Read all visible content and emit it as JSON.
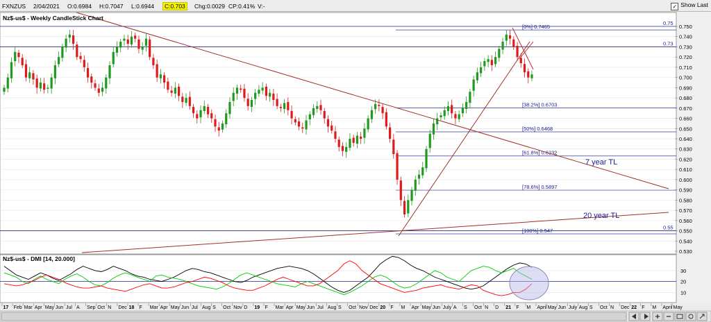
{
  "toolbar": {
    "symbol": "FXNZUS",
    "date": "2/04/2021",
    "open": "O:0.6984",
    "high": "H:0.7047",
    "low": "L:0.6944",
    "close": "C:0.703",
    "change": "Chg:0.0029",
    "change_pct": "CP:0.41%",
    "volume": "V:-",
    "show_last": "Show Last",
    "show_last_checked": true
  },
  "chart_data": [
    {
      "type": "candlestick",
      "title": "Nz$-us$ - Weekly CandleStick Chart",
      "ylim": [
        0.525,
        0.758
      ],
      "ytick_labels": [
        "0.750",
        "0.740",
        "0.730",
        "0.720",
        "0.710",
        "0.700",
        "0.690",
        "0.680",
        "0.670",
        "0.660",
        "0.650",
        "0.640",
        "0.630",
        "0.620",
        "0.610",
        "0.600",
        "0.590",
        "0.580",
        "0.570",
        "0.560",
        "0.550",
        "0.540",
        "0.530"
      ],
      "horizontal_levels": [
        {
          "label": "0.75",
          "value": 0.75
        },
        {
          "label": "0.73",
          "value": 0.73
        },
        {
          "label": "0.55",
          "value": 0.55
        }
      ],
      "fibonacci": [
        {
          "label": "[0%] 0.7465",
          "value": 0.7465
        },
        {
          "label": "[38.2%] 0.6703",
          "value": 0.6703
        },
        {
          "label": "[50%] 0.6468",
          "value": 0.6468
        },
        {
          "label": "[61.8%] 0.6232",
          "value": 0.6232
        },
        {
          "label": "[78.6%] 0.5897",
          "value": 0.5897
        },
        {
          "label": "[100%] 0.547",
          "value": 0.547
        }
      ],
      "annotations": [
        "7 year TL",
        "20 year TL"
      ],
      "series_close": [
        0.69,
        0.7,
        0.715,
        0.725,
        0.72,
        0.712,
        0.7,
        0.705,
        0.698,
        0.69,
        0.695,
        0.688,
        0.69,
        0.7,
        0.712,
        0.72,
        0.73,
        0.738,
        0.742,
        0.733,
        0.72,
        0.718,
        0.71,
        0.7,
        0.695,
        0.69,
        0.685,
        0.69,
        0.7,
        0.712,
        0.725,
        0.73,
        0.735,
        0.738,
        0.733,
        0.74,
        0.738,
        0.728,
        0.73,
        0.738,
        0.72,
        0.712,
        0.7,
        0.703,
        0.695,
        0.688,
        0.685,
        0.69,
        0.682,
        0.676,
        0.68,
        0.672,
        0.665,
        0.66,
        0.668,
        0.672,
        0.664,
        0.66,
        0.652,
        0.648,
        0.655,
        0.665,
        0.676,
        0.685,
        0.69,
        0.688,
        0.68,
        0.672,
        0.678,
        0.685,
        0.688,
        0.69,
        0.682,
        0.685,
        0.678,
        0.672,
        0.67,
        0.675,
        0.668,
        0.66,
        0.656,
        0.652,
        0.65,
        0.658,
        0.664,
        0.67,
        0.672,
        0.668,
        0.66,
        0.652,
        0.648,
        0.64,
        0.632,
        0.628,
        0.632,
        0.64,
        0.636,
        0.643,
        0.64,
        0.65,
        0.66,
        0.668,
        0.674,
        0.672,
        0.665,
        0.652,
        0.64,
        0.625,
        0.6,
        0.58,
        0.566,
        0.58,
        0.59,
        0.6,
        0.605,
        0.612,
        0.63,
        0.645,
        0.655,
        0.66,
        0.663,
        0.668,
        0.672,
        0.665,
        0.66,
        0.664,
        0.67,
        0.676,
        0.686,
        0.698,
        0.705,
        0.71,
        0.716,
        0.718,
        0.712,
        0.72,
        0.728,
        0.735,
        0.742,
        0.738,
        0.73,
        0.72,
        0.714,
        0.705,
        0.7,
        0.703
      ]
    },
    {
      "type": "line",
      "title": "Nz$-us$ - DMI [14, 20.000]",
      "ytick_labels": [
        "30",
        "20",
        "10"
      ],
      "ylim": [
        2,
        42
      ],
      "reference_level": 20,
      "series": [
        {
          "color": "#000000",
          "values": [
            34,
            30,
            26,
            24,
            22,
            25,
            28,
            26,
            23,
            21,
            24,
            27,
            31,
            34,
            32,
            30,
            29,
            31,
            34,
            32,
            30,
            27,
            25,
            24,
            22,
            21,
            20,
            22,
            24,
            27,
            30,
            32,
            31,
            29,
            28,
            26,
            24,
            22,
            20,
            19,
            21,
            24,
            26,
            28,
            30,
            32,
            33,
            34,
            33,
            32,
            30,
            27,
            23,
            19,
            15,
            12,
            10,
            12,
            16,
            20,
            24,
            30,
            36,
            40,
            43,
            42,
            39,
            35,
            32,
            30,
            27,
            24,
            22,
            20,
            18,
            16,
            14,
            13,
            14,
            16,
            20,
            24,
            28,
            32,
            35,
            37,
            36,
            33
          ]
        },
        {
          "color": "#00cc00",
          "values": [
            28,
            26,
            24,
            20,
            18,
            22,
            25,
            22,
            20,
            18,
            22,
            25,
            27,
            24,
            20,
            17,
            16,
            19,
            23,
            26,
            28,
            26,
            24,
            22,
            20,
            25,
            26,
            24,
            23,
            22,
            20,
            18,
            16,
            15,
            14,
            13,
            15,
            18,
            22,
            26,
            28,
            26,
            24,
            22,
            20,
            18,
            17,
            16,
            15,
            18,
            20,
            18,
            16,
            14,
            12,
            10,
            8,
            10,
            13,
            16,
            20,
            24,
            26,
            24,
            20,
            16,
            14,
            15,
            18,
            22,
            26,
            30,
            28,
            24,
            22,
            20,
            25,
            30,
            32,
            34,
            33,
            30,
            28,
            30,
            32,
            28,
            25,
            22
          ]
        },
        {
          "color": "#ff0000",
          "values": [
            18,
            17,
            16,
            17,
            19,
            21,
            24,
            26,
            24,
            22,
            19,
            17,
            15,
            14,
            14,
            15,
            16,
            14,
            13,
            12,
            11,
            13,
            15,
            17,
            18,
            16,
            14,
            14,
            15,
            17,
            19,
            20,
            22,
            24,
            23,
            21,
            19,
            16,
            14,
            13,
            12,
            12,
            14,
            16,
            19,
            22,
            24,
            22,
            20,
            18,
            16,
            16,
            18,
            22,
            26,
            30,
            36,
            39,
            36,
            30,
            26,
            22,
            18,
            16,
            14,
            12,
            10,
            11,
            12,
            14,
            15,
            16,
            17,
            15,
            14,
            13,
            15,
            17,
            16,
            12,
            10,
            8,
            7,
            8,
            10,
            10,
            13,
            18
          ]
        }
      ]
    }
  ],
  "xaxis": {
    "labels": [
      "17",
      "Feb",
      "Mar",
      "Apr",
      "May",
      "Jun",
      "Jul",
      "A",
      "Sep",
      "Oct",
      "N",
      "Dec",
      "18",
      "F",
      "Mar",
      "Apr",
      "May",
      "Jun",
      "Jul",
      "Aug",
      "S",
      "Oct",
      "Nov",
      "D",
      "19",
      "F",
      "Mar",
      "Apr",
      "May",
      "Jun",
      "Jul",
      "Aug",
      "S",
      "Oct",
      "Nov",
      "Dec",
      "20",
      "F",
      "M",
      "Apr",
      "May",
      "Jun",
      "July",
      "A",
      "S",
      "Oct",
      "N",
      "D",
      "21",
      "F",
      "M",
      "April",
      "May",
      "Jun",
      "July",
      "Aug",
      "S",
      "Oct",
      "N",
      "Dec",
      "22",
      "F",
      "M",
      "April",
      "May"
    ],
    "year_labels": [
      "17",
      "18",
      "19",
      "20",
      "21",
      "22"
    ]
  }
}
